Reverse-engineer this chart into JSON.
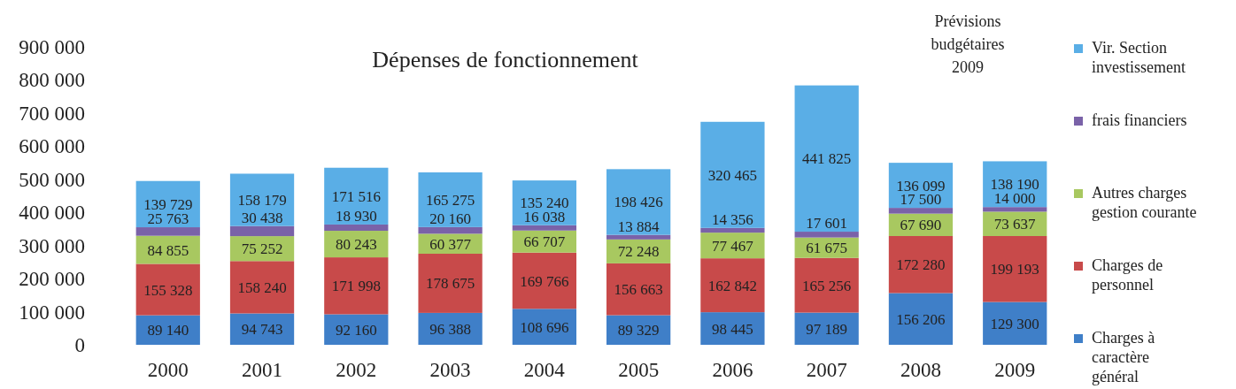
{
  "chart_data": {
    "type": "bar",
    "title": "Dépenses de fonctionnement",
    "stacked": true,
    "legend": "right",
    "data_labels": true,
    "annotations": [
      "Prévisions budgétaires 2009"
    ],
    "categories": [
      "2000",
      "2001",
      "2002",
      "2003",
      "2004",
      "2005",
      "2006",
      "2007",
      "2008",
      "2009"
    ],
    "ylim": [
      0,
      900000
    ],
    "yticks": [
      {
        "value": 0,
        "label": "0"
      },
      {
        "value": 100000,
        "label": "100 000"
      },
      {
        "value": 200000,
        "label": "200 000"
      },
      {
        "value": 300000,
        "label": "300 000"
      },
      {
        "value": 400000,
        "label": "400 000"
      },
      {
        "value": 500000,
        "label": "500 000"
      },
      {
        "value": 600000,
        "label": "600 000"
      },
      {
        "value": 700000,
        "label": "700 000"
      },
      {
        "value": 800000,
        "label": "800 000"
      },
      {
        "value": 900000,
        "label": "900 000"
      }
    ],
    "series": [
      {
        "name": "Charges à caractère général",
        "color": "#3f7fc8",
        "values": [
          89140,
          94743,
          92160,
          96388,
          108696,
          89329,
          98445,
          97189,
          156206,
          129300
        ],
        "value_labels": [
          "89 140",
          "94 743",
          "92 160",
          "96 388",
          "108 696",
          "89 329",
          "98 445",
          "97 189",
          "156 206",
          "129 300"
        ]
      },
      {
        "name": "Charges de personnel",
        "color": "#c84a4a",
        "values": [
          155328,
          158240,
          171998,
          178675,
          169766,
          156663,
          162842,
          165256,
          172280,
          199193
        ],
        "value_labels": [
          "155 328",
          "158 240",
          "171 998",
          "178 675",
          "169 766",
          "156 663",
          "162 842",
          "165 256",
          "172 280",
          "199 193"
        ]
      },
      {
        "name": "Autres charges gestion courante",
        "color": "#a8c860",
        "values": [
          84855,
          75252,
          80243,
          60377,
          66707,
          72248,
          77467,
          61675,
          67690,
          73637
        ],
        "value_labels": [
          "84 855",
          "75 252",
          "80 243",
          "60 377",
          "66 707",
          "72 248",
          "77 467",
          "61 675",
          "67 690",
          "73 637"
        ]
      },
      {
        "name": "frais financiers",
        "color": "#7a62a8",
        "values": [
          25763,
          30438,
          18930,
          20160,
          16038,
          13884,
          14356,
          17601,
          17500,
          14000
        ],
        "value_labels": [
          "25 763",
          "30 438",
          "18 930",
          "20 160",
          "16 038",
          "13 884",
          "14 356",
          "17 601",
          "17 500",
          "14 000"
        ]
      },
      {
        "name": "Vir. Section investissement",
        "color": "#5aaee6",
        "values": [
          139729,
          158179,
          171516,
          165275,
          135240,
          198426,
          320465,
          441825,
          136099,
          138190
        ],
        "value_labels": [
          "139 729",
          "158 179",
          "171 516",
          "165 275",
          "135 240",
          "198 426",
          "320 465",
          "441 825",
          "136 099",
          "138 190"
        ]
      }
    ]
  }
}
